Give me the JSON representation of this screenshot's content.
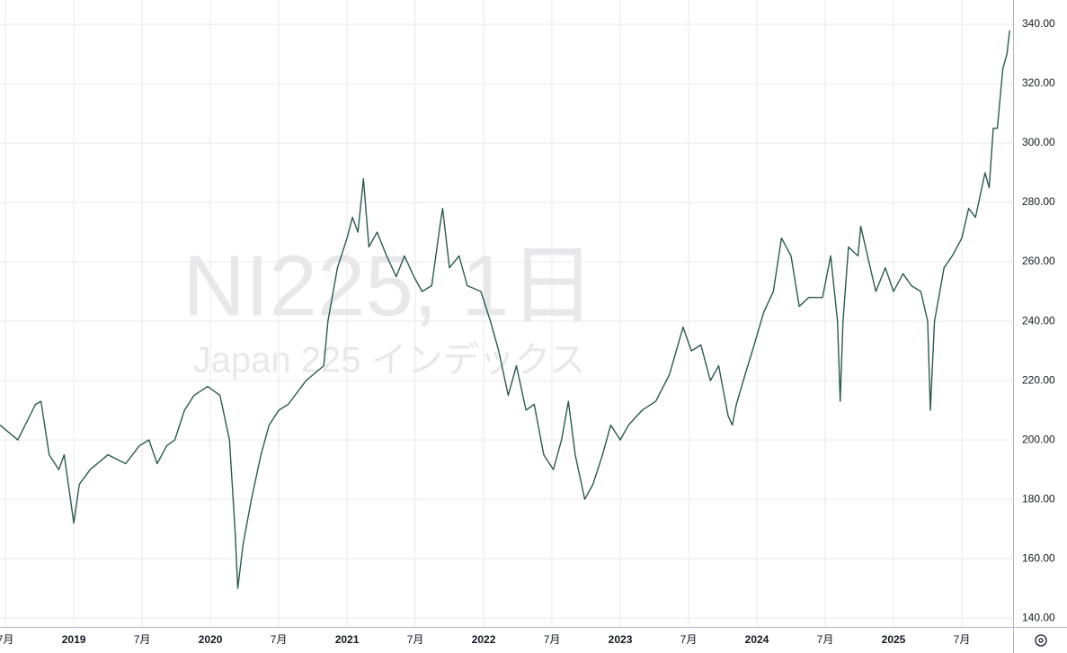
{
  "chart_data": {
    "type": "line",
    "watermark_title": "NI225, 1日",
    "watermark_subtitle": "Japan 225 インデックス",
    "color": "#2b5a50",
    "grid": true,
    "xlim": [
      2018.46,
      2025.875
    ],
    "ylim": [
      137,
      348.2
    ],
    "xticks": [
      {
        "value": 2018.5,
        "label": "7月"
      },
      {
        "value": 2019,
        "label": "2019"
      },
      {
        "value": 2019.5,
        "label": "7月"
      },
      {
        "value": 2020,
        "label": "2020"
      },
      {
        "value": 2020.5,
        "label": "7月"
      },
      {
        "value": 2021,
        "label": "2021"
      },
      {
        "value": 2021.5,
        "label": "7月"
      },
      {
        "value": 2022,
        "label": "2022"
      },
      {
        "value": 2022.5,
        "label": "7月"
      },
      {
        "value": 2023,
        "label": "2023"
      },
      {
        "value": 2023.5,
        "label": "7月"
      },
      {
        "value": 2024,
        "label": "2024"
      },
      {
        "value": 2024.5,
        "label": "7月"
      },
      {
        "value": 2025,
        "label": "2025"
      },
      {
        "value": 2025.5,
        "label": "7月"
      }
    ],
    "yticks": [
      {
        "value": 140,
        "label": "140.00"
      },
      {
        "value": 160,
        "label": "160.00"
      },
      {
        "value": 180,
        "label": "180.00"
      },
      {
        "value": 200,
        "label": "200.00"
      },
      {
        "value": 220,
        "label": "220.00"
      },
      {
        "value": 240,
        "label": "240.00"
      },
      {
        "value": 260,
        "label": "260.00"
      },
      {
        "value": 280,
        "label": "280.00"
      },
      {
        "value": 300,
        "label": "300.00"
      },
      {
        "value": 320,
        "label": "320.00"
      },
      {
        "value": 340,
        "label": "340.00"
      }
    ],
    "x": [
      2018.46,
      2018.59,
      2018.72,
      2018.76,
      2018.82,
      2018.89,
      2018.93,
      2019.0,
      2019.04,
      2019.12,
      2019.25,
      2019.38,
      2019.48,
      2019.55,
      2019.61,
      2019.68,
      2019.74,
      2019.81,
      2019.88,
      2019.98,
      2020.07,
      2020.14,
      2020.18,
      2020.2,
      2020.24,
      2020.3,
      2020.37,
      2020.43,
      2020.5,
      2020.57,
      2020.7,
      2020.83,
      2020.86,
      2020.93,
      2021.0,
      2021.04,
      2021.08,
      2021.12,
      2021.16,
      2021.22,
      2021.29,
      2021.36,
      2021.42,
      2021.49,
      2021.55,
      2021.62,
      2021.68,
      2021.7,
      2021.75,
      2021.82,
      2021.88,
      2021.98,
      2022.05,
      2022.11,
      2022.18,
      2022.24,
      2022.31,
      2022.37,
      2022.44,
      2022.51,
      2022.57,
      2022.62,
      2022.67,
      2022.74,
      2022.8,
      2022.87,
      2022.93,
      2023.0,
      2023.06,
      2023.16,
      2023.26,
      2023.36,
      2023.46,
      2023.52,
      2023.59,
      2023.66,
      2023.72,
      2023.79,
      2023.82,
      2023.85,
      2023.92,
      2023.98,
      2024.05,
      2024.12,
      2024.18,
      2024.25,
      2024.31,
      2024.38,
      2024.48,
      2024.54,
      2024.59,
      2024.61,
      2024.63,
      2024.67,
      2024.74,
      2024.76,
      2024.81,
      2024.87,
      2024.94,
      2025.0,
      2025.07,
      2025.13,
      2025.2,
      2025.25,
      2025.27,
      2025.3,
      2025.37,
      2025.43,
      2025.5,
      2025.55,
      2025.6,
      2025.67,
      2025.7,
      2025.73,
      2025.76,
      2025.8,
      2025.83,
      2025.85
    ],
    "values": [
      205,
      200,
      212,
      213,
      195,
      190,
      195,
      172,
      185,
      190,
      195,
      192,
      198,
      200,
      192,
      198,
      200,
      210,
      215,
      218,
      215,
      200,
      170,
      150,
      165,
      180,
      195,
      205,
      210,
      212,
      220,
      225,
      240,
      258,
      268,
      275,
      270,
      288,
      265,
      270,
      262,
      255,
      262,
      255,
      250,
      252,
      272,
      278,
      258,
      262,
      252,
      250,
      240,
      230,
      215,
      225,
      210,
      212,
      195,
      190,
      200,
      213,
      195,
      180,
      185,
      195,
      205,
      200,
      205,
      210,
      213,
      222,
      238,
      230,
      232,
      220,
      225,
      208,
      205,
      212,
      223,
      232,
      243,
      250,
      268,
      262,
      245,
      248,
      248,
      262,
      240,
      213,
      240,
      265,
      262,
      272,
      262,
      250,
      258,
      250,
      256,
      252,
      250,
      240,
      210,
      240,
      258,
      262,
      268,
      278,
      275,
      290,
      285,
      305,
      305,
      325,
      330,
      338
    ]
  }
}
